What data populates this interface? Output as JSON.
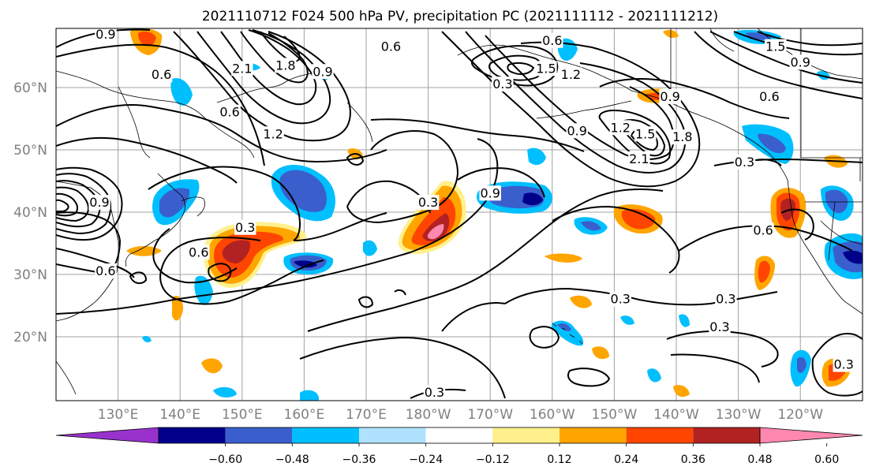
{
  "title": "2021110712 F024 500 hPa PV, precipitation PC (2021111112 - 2021111212)",
  "latitude_labels": [
    {
      "label": "60°N",
      "lat": 60
    },
    {
      "label": "50°N",
      "lat": 50
    },
    {
      "label": "40°N",
      "lat": 40
    },
    {
      "label": "30°N",
      "lat": 30
    },
    {
      "label": "20°N",
      "lat": 20
    }
  ],
  "longitude_labels": [
    {
      "label": "130°E",
      "lon": 130
    },
    {
      "label": "140°E",
      "lon": 140
    },
    {
      "label": "150°E",
      "lon": 150
    },
    {
      "label": "160°E",
      "lon": 160
    },
    {
      "label": "170°E",
      "lon": 170
    },
    {
      "label": "180°W",
      "lon": 180
    },
    {
      "label": "170°W",
      "lon": 190
    },
    {
      "label": "160°W",
      "lon": 200
    },
    {
      "label": "150°W",
      "lon": 210
    },
    {
      "label": "140°W",
      "lon": 220
    },
    {
      "label": "130°W",
      "lon": 230
    },
    {
      "label": "120°W",
      "lon": 240
    }
  ],
  "colorbar": {
    "colors": [
      "#9932cc",
      "#00008b",
      "#3a5fcd",
      "#00bfff",
      "#b0e2ff",
      "#ffffff",
      "#fff08c",
      "#ffa500",
      "#ff4500",
      "#b22222",
      "#ff88b0"
    ],
    "ticks": [
      "−0.60",
      "−0.48",
      "−0.36",
      "−0.24",
      "−0.12",
      "0.12",
      "0.24",
      "0.36",
      "0.48",
      "0.60"
    ]
  },
  "contour_labels": [
    {
      "text": "0.9",
      "lon": 128,
      "lat": 68.5
    },
    {
      "text": "0.6",
      "lon": 137,
      "lat": 62
    },
    {
      "text": "0.6",
      "lon": 174,
      "lat": 66.5
    },
    {
      "text": "2.1",
      "lon": 150,
      "lat": 63
    },
    {
      "text": "1.8",
      "lon": 157,
      "lat": 63.5
    },
    {
      "text": "0.9",
      "lon": 163,
      "lat": 62.5
    },
    {
      "text": "1.2",
      "lon": 155,
      "lat": 52.5
    },
    {
      "text": "0.6",
      "lon": 148,
      "lat": 56
    },
    {
      "text": "0.6",
      "lon": 200,
      "lat": 67.5
    },
    {
      "text": "1.5",
      "lon": 199,
      "lat": 63
    },
    {
      "text": "1.2",
      "lon": 203,
      "lat": 62
    },
    {
      "text": "0.3",
      "lon": 192,
      "lat": 60.5
    },
    {
      "text": "0.9",
      "lon": 204,
      "lat": 53
    },
    {
      "text": "1.2",
      "lon": 211,
      "lat": 53.5
    },
    {
      "text": "1.5",
      "lon": 215,
      "lat": 52.5
    },
    {
      "text": "1.8",
      "lon": 221,
      "lat": 52
    },
    {
      "text": "2.1",
      "lon": 214,
      "lat": 48.5
    },
    {
      "text": "0.9",
      "lon": 219,
      "lat": 58.5
    },
    {
      "text": "1.5",
      "lon": 236,
      "lat": 66.5
    },
    {
      "text": "0.9",
      "lon": 240,
      "lat": 64
    },
    {
      "text": "0.6",
      "lon": 235,
      "lat": 58.5
    },
    {
      "text": "0.3",
      "lon": 231,
      "lat": 48
    },
    {
      "text": "0.9",
      "lon": 127,
      "lat": 41.5
    },
    {
      "text": "0.3",
      "lon": 180,
      "lat": 41.5
    },
    {
      "text": "0.9",
      "lon": 190,
      "lat": 43
    },
    {
      "text": "0.3",
      "lon": 150.5,
      "lat": 37.5
    },
    {
      "text": "0.6",
      "lon": 143,
      "lat": 33.5
    },
    {
      "text": "0.6",
      "lon": 128,
      "lat": 30.5
    },
    {
      "text": "0.6",
      "lon": 234,
      "lat": 37
    },
    {
      "text": "0.3",
      "lon": 211,
      "lat": 26
    },
    {
      "text": "0.3",
      "lon": 228,
      "lat": 26
    },
    {
      "text": "0.3",
      "lon": 227,
      "lat": 21.5
    },
    {
      "text": "0.3",
      "lon": 181,
      "lat": 11
    },
    {
      "text": "0.3",
      "lon": 247,
      "lat": 15.5
    }
  ]
}
